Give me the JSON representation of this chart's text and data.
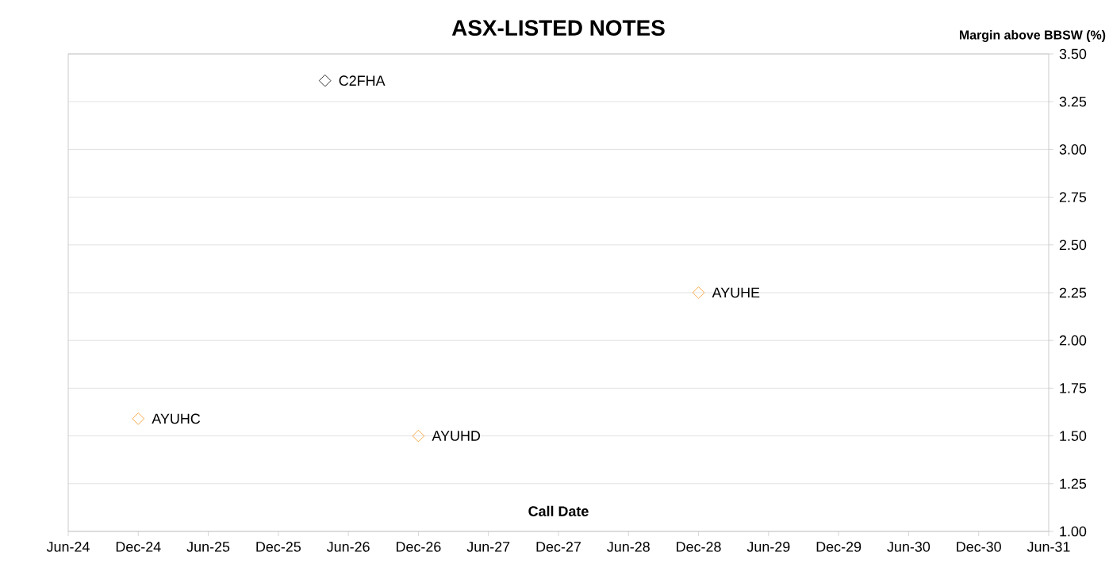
{
  "chart_data": {
    "type": "scatter",
    "title": "ASX-LISTED NOTES",
    "xlabel": "Call Date",
    "ylabel": "Margin above BBSW (%)",
    "series": [
      {
        "name": "C2FHA",
        "color": "#000000",
        "x": [
          "2026-04"
        ],
        "values": [
          3.36
        ]
      },
      {
        "name": "AYUHC",
        "color": "#f7941d",
        "x": [
          "2024-12"
        ],
        "values": [
          1.59
        ]
      },
      {
        "name": "AYUHD",
        "color": "#f7941d",
        "x": [
          "2026-12"
        ],
        "values": [
          1.5
        ]
      },
      {
        "name": "AYUHE",
        "color": "#f7941d",
        "x": [
          "2028-12"
        ],
        "values": [
          2.25
        ]
      }
    ],
    "xlim": [
      "2024-06",
      "2031-06"
    ],
    "xticks": [
      {
        "value": "2024-06",
        "label": "Jun-24"
      },
      {
        "value": "2024-12",
        "label": "Dec-24"
      },
      {
        "value": "2025-06",
        "label": "Jun-25"
      },
      {
        "value": "2025-12",
        "label": "Dec-25"
      },
      {
        "value": "2026-06",
        "label": "Jun-26"
      },
      {
        "value": "2026-12",
        "label": "Dec-26"
      },
      {
        "value": "2027-06",
        "label": "Jun-27"
      },
      {
        "value": "2027-12",
        "label": "Dec-27"
      },
      {
        "value": "2028-06",
        "label": "Jun-28"
      },
      {
        "value": "2028-12",
        "label": "Dec-28"
      },
      {
        "value": "2029-06",
        "label": "Jun-29"
      },
      {
        "value": "2029-12",
        "label": "Dec-29"
      },
      {
        "value": "2030-06",
        "label": "Jun-30"
      },
      {
        "value": "2030-12",
        "label": "Dec-30"
      },
      {
        "value": "2031-06",
        "label": "Jun-31"
      }
    ],
    "ylim": [
      1,
      3.5
    ],
    "yticks": [
      {
        "value": 1,
        "label": "1.00"
      },
      {
        "value": 1.25,
        "label": "1.25"
      },
      {
        "value": 1.5,
        "label": "1.50"
      },
      {
        "value": 1.75,
        "label": "1.75"
      },
      {
        "value": 2,
        "label": "2.00"
      },
      {
        "value": 2.25,
        "label": "2.25"
      },
      {
        "value": 2.5,
        "label": "2.50"
      },
      {
        "value": 2.75,
        "label": "2.75"
      },
      {
        "value": 3,
        "label": "3.00"
      },
      {
        "value": 3.25,
        "label": "3.25"
      },
      {
        "value": 3.5,
        "label": "3.50"
      }
    ],
    "grid": "y",
    "legend": false,
    "marker": "diamond"
  }
}
